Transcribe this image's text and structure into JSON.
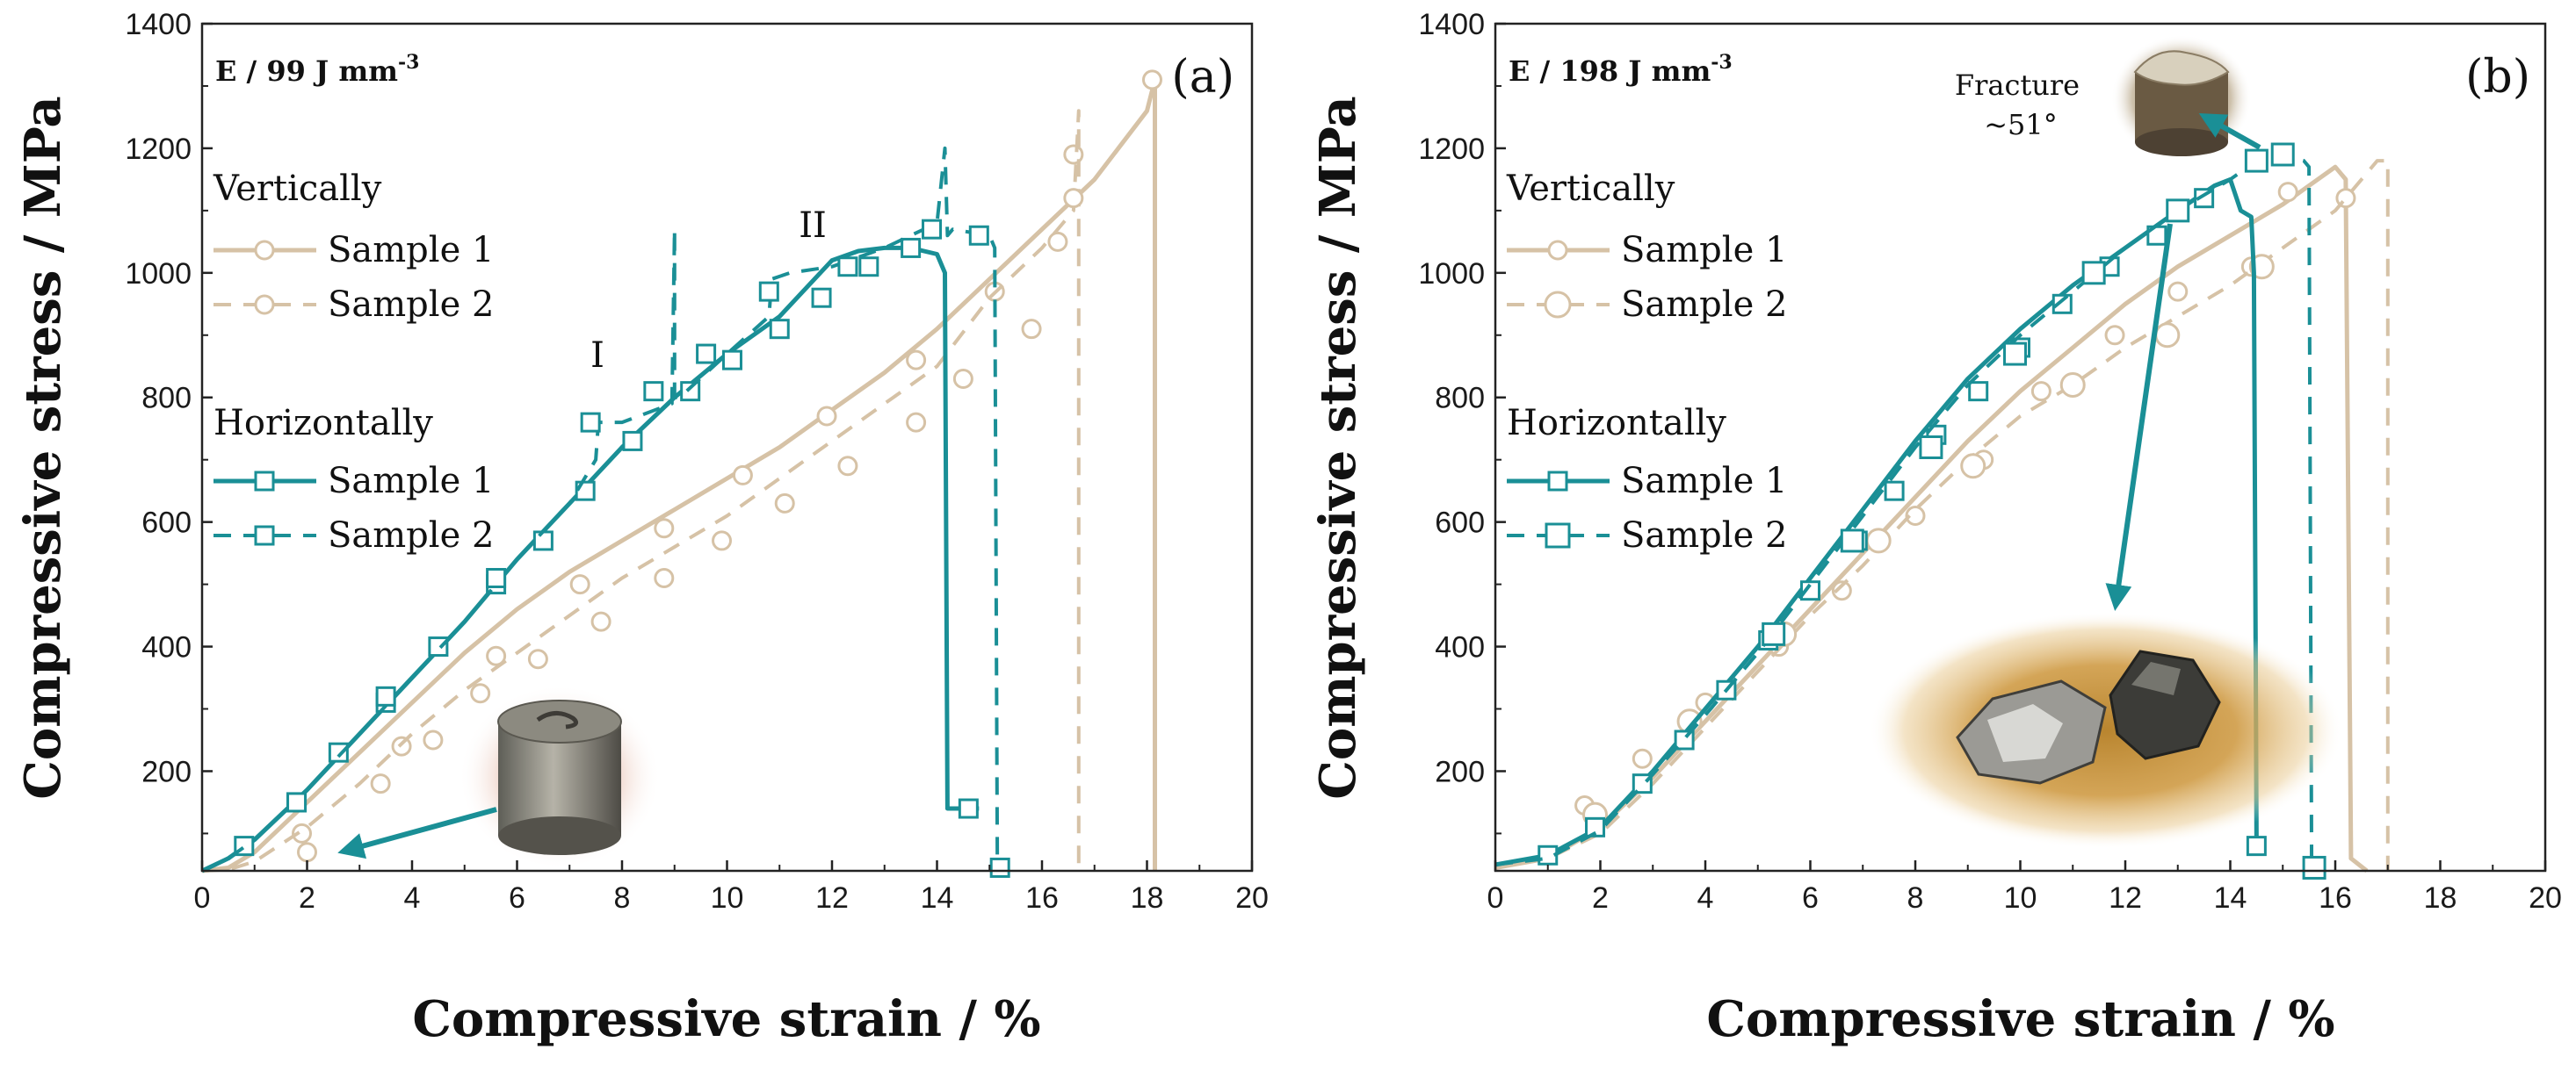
{
  "chart_data": [
    {
      "panel": "a",
      "type": "line",
      "panel_label": "(a)",
      "energy_label": "E / 99 J mm",
      "energy_sup": "-3",
      "xlabel": "Compressive strain / %",
      "ylabel": "Compressive stress / MPa",
      "xlim": [
        0,
        20
      ],
      "ylim": [
        40,
        1400
      ],
      "xticks": [
        0,
        2,
        4,
        6,
        8,
        10,
        12,
        14,
        16,
        18,
        20
      ],
      "yticks": [
        200,
        400,
        600,
        800,
        1000,
        1200,
        1400
      ],
      "legend": {
        "group1": "Vertically",
        "group2": "Horizontally",
        "items": [
          "Sample 1",
          "Sample 2",
          "Sample 1",
          "Sample 2"
        ]
      },
      "annotations": [
        {
          "label": "I",
          "x": 7.6,
          "y": 860
        },
        {
          "label": "II",
          "x": 11.8,
          "y": 1090
        }
      ],
      "series": [
        {
          "group": "Vertically",
          "label": "Sample 1",
          "color": "#d6c2a6",
          "dash": "solid",
          "marker": "circle",
          "x": [
            0,
            0.5,
            1,
            2,
            3,
            4,
            5,
            6,
            7,
            8,
            9,
            10,
            11,
            12,
            13,
            14,
            15,
            16,
            17,
            18,
            18.15,
            18.15
          ],
          "y": [
            40,
            45,
            70,
            150,
            230,
            310,
            390,
            460,
            520,
            570,
            620,
            670,
            720,
            780,
            840,
            910,
            990,
            1070,
            1150,
            1260,
            1310,
            40
          ],
          "marker_x": [
            1.9,
            3.8,
            5.6,
            7.2,
            8.8,
            10.3,
            11.9,
            13.6,
            15.1,
            16.6,
            18.1
          ],
          "marker_y": [
            100,
            240,
            385,
            500,
            590,
            675,
            770,
            860,
            970,
            1190,
            1310
          ]
        },
        {
          "group": "Vertically",
          "label": "Sample 2",
          "color": "#d6c2a6",
          "dash": "dashed",
          "marker": "circle",
          "x": [
            0,
            0.5,
            1,
            2,
            3,
            4,
            5,
            6,
            7,
            8,
            9,
            10,
            11,
            12,
            13,
            14,
            15,
            16,
            16.6,
            16.7,
            16.7
          ],
          "y": [
            40,
            42,
            55,
            110,
            180,
            260,
            330,
            390,
            450,
            510,
            560,
            610,
            670,
            730,
            790,
            850,
            960,
            1040,
            1100,
            1260,
            40
          ],
          "marker_x": [
            2.0,
            3.4,
            4.4,
            5.3,
            6.4,
            7.6,
            8.8,
            9.9,
            11.1,
            12.3,
            13.6,
            14.5,
            15.8,
            16.3,
            16.6
          ],
          "marker_y": [
            70,
            180,
            250,
            325,
            380,
            440,
            510,
            570,
            630,
            690,
            760,
            830,
            910,
            1050,
            1120
          ]
        },
        {
          "group": "Horizontally",
          "label": "Sample 1",
          "color": "#1a8f96",
          "dash": "solid",
          "marker": "square",
          "x": [
            0,
            0.5,
            1,
            2,
            3,
            4,
            5,
            6,
            7,
            8,
            9,
            10,
            11,
            12,
            12.5,
            13,
            13.5,
            14,
            14.15,
            14.2,
            14.8
          ],
          "y": [
            40,
            60,
            90,
            170,
            260,
            350,
            440,
            540,
            630,
            720,
            800,
            870,
            930,
            1020,
            1035,
            1040,
            1040,
            1030,
            1000,
            140,
            140
          ],
          "marker_x": [
            0.8,
            1.8,
            2.6,
            3.5,
            4.5,
            5.6,
            6.5,
            7.3,
            8.2,
            9.3,
            10.1,
            11.0,
            11.8,
            12.7,
            13.5,
            14.6
          ],
          "marker_y": [
            80,
            150,
            230,
            310,
            400,
            500,
            570,
            650,
            730,
            810,
            860,
            910,
            960,
            1010,
            1040,
            140
          ]
        },
        {
          "group": "Horizontally",
          "label": "Sample 2",
          "color": "#1a8f96",
          "dash": "dashed",
          "marker": "square",
          "x": [
            0,
            0.5,
            1,
            2,
            3,
            4,
            5,
            6,
            7,
            7.5,
            7.55,
            8,
            8.95,
            9.0,
            9.0,
            9.1,
            10,
            10.8,
            10.85,
            11.2,
            12,
            13,
            14,
            14.15,
            14.2,
            14.3,
            15,
            15.1,
            15.15
          ],
          "y": [
            40,
            60,
            90,
            170,
            260,
            350,
            440,
            540,
            630,
            700,
            760,
            760,
            790,
            1070,
            800,
            800,
            870,
            930,
            990,
            1000,
            1010,
            1040,
            1080,
            1200,
            1060,
            1070,
            1060,
            1040,
            40
          ],
          "marker_x": [
            1.8,
            3.5,
            5.6,
            7.4,
            8.6,
            9.6,
            10.8,
            12.3,
            13.9,
            14.8,
            15.2
          ],
          "marker_y": [
            150,
            320,
            510,
            760,
            810,
            870,
            970,
            1010,
            1070,
            1060,
            45
          ]
        }
      ],
      "insets": [
        {
          "description_label": "",
          "pointer_to_x": 2.2,
          "pointer_to_y": 70
        }
      ]
    },
    {
      "panel": "b",
      "type": "line",
      "panel_label": "(b)",
      "energy_label": "E / 198 J mm",
      "energy_sup": "-3",
      "xlabel": "Compressive strain / %",
      "ylabel": "Compressive stress / MPa",
      "xlim": [
        0,
        20
      ],
      "ylim": [
        40,
        1400
      ],
      "xticks": [
        0,
        2,
        4,
        6,
        8,
        10,
        12,
        14,
        16,
        18,
        20
      ],
      "yticks": [
        200,
        400,
        600,
        800,
        1000,
        1200,
        1400
      ],
      "legend": {
        "group1": "Vertically",
        "group2": "Horizontally",
        "items": [
          "Sample 1",
          "Sample 2",
          "Sample 1",
          "Sample 2"
        ]
      },
      "annotations": [
        {
          "label": "Fracture",
          "x": 10.9,
          "y": 1310
        },
        {
          "label": "~51°",
          "x": 11.1,
          "y": 1240
        }
      ],
      "series": [
        {
          "group": "Vertically",
          "label": "Sample 1",
          "color": "#d6c2a6",
          "dash": "solid",
          "marker": "circle",
          "x": [
            0,
            1,
            2,
            3,
            4,
            5,
            6,
            7,
            8,
            9,
            10,
            11,
            12,
            13,
            14,
            15,
            15.5,
            16,
            16.2,
            16.3,
            16.6
          ],
          "y": [
            45,
            60,
            110,
            190,
            280,
            370,
            460,
            550,
            640,
            730,
            810,
            880,
            950,
            1010,
            1060,
            1110,
            1140,
            1170,
            1150,
            60,
            40
          ],
          "marker_x": [
            1.7,
            2.8,
            4.0,
            5.4,
            6.6,
            8.0,
            9.3,
            10.4,
            11.8,
            13.0,
            14.4,
            15.1,
            16.2
          ],
          "marker_y": [
            145,
            220,
            310,
            400,
            490,
            610,
            700,
            810,
            900,
            970,
            1010,
            1130,
            1120
          ]
        },
        {
          "group": "Vertically",
          "label": "Sample 2",
          "color": "#d6c2a6",
          "dash": "dashed",
          "marker": "circle",
          "x": [
            0,
            1,
            2,
            3,
            4,
            5,
            6,
            7,
            8,
            9,
            10,
            11,
            12,
            13,
            14,
            15,
            16,
            16.8,
            17,
            17.0
          ],
          "y": [
            45,
            60,
            100,
            180,
            270,
            360,
            450,
            530,
            620,
            700,
            770,
            820,
            880,
            930,
            980,
            1040,
            1100,
            1180,
            1180,
            40
          ],
          "marker_x": [
            1.9,
            3.7,
            5.5,
            7.3,
            9.1,
            11.0,
            12.8,
            14.6
          ],
          "marker_y": [
            130,
            280,
            420,
            570,
            690,
            820,
            900,
            1010
          ]
        },
        {
          "group": "Horizontally",
          "label": "Sample 1",
          "color": "#1a8f96",
          "dash": "solid",
          "marker": "square",
          "x": [
            0,
            1,
            2,
            3,
            4,
            5,
            6,
            7,
            8,
            9,
            10,
            11,
            12,
            13,
            13.7,
            14.0,
            14.2,
            14.4,
            14.45,
            14.5,
            14.55
          ],
          "y": [
            50,
            65,
            110,
            200,
            300,
            400,
            510,
            620,
            730,
            830,
            910,
            980,
            1040,
            1100,
            1140,
            1150,
            1100,
            1090,
            1000,
            80,
            80
          ],
          "marker_x": [
            1.0,
            1.9,
            2.8,
            3.6,
            4.4,
            5.2,
            6.0,
            6.9,
            7.6,
            8.4,
            9.2,
            10.0,
            10.8,
            11.7,
            12.6,
            13.5,
            14.5
          ],
          "marker_y": [
            65,
            110,
            180,
            250,
            330,
            410,
            490,
            570,
            650,
            740,
            810,
            880,
            950,
            1010,
            1060,
            1120,
            80
          ]
        },
        {
          "group": "Horizontally",
          "label": "Sample 2",
          "color": "#1a8f96",
          "dash": "dashed",
          "marker": "square",
          "x": [
            0,
            1,
            2,
            3,
            4,
            5,
            6,
            7,
            8,
            9,
            10,
            11,
            12,
            13,
            14,
            14.5,
            15,
            15.4,
            15.5,
            15.55,
            15.7
          ],
          "y": [
            50,
            60,
            105,
            195,
            290,
            390,
            500,
            610,
            720,
            820,
            900,
            970,
            1040,
            1100,
            1150,
            1180,
            1190,
            1180,
            1170,
            45,
            45
          ],
          "marker_x": [
            5.3,
            6.8,
            8.3,
            9.9,
            11.4,
            13.0,
            14.5,
            15.0,
            15.6
          ],
          "marker_y": [
            420,
            570,
            720,
            870,
            1000,
            1100,
            1180,
            1190,
            45
          ]
        }
      ],
      "insets": [
        {
          "pointer_to_x": 11.8,
          "pointer_to_y": 340
        },
        {
          "pointer_to_x": 15.8,
          "pointer_to_y": 1200
        }
      ]
    }
  ]
}
